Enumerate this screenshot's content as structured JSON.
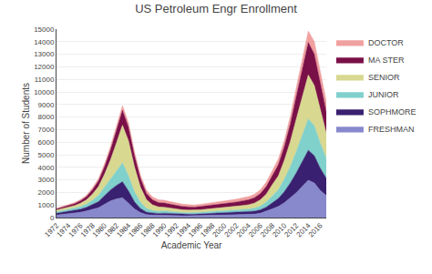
{
  "chart_data": {
    "type": "area",
    "title": "US Petroleum Engr Enrollment",
    "xlabel": "Academic Year",
    "ylabel": "Number of Students",
    "x": [
      1972,
      1973,
      1974,
      1975,
      1976,
      1977,
      1978,
      1979,
      1980,
      1981,
      1982,
      1983,
      1984,
      1985,
      1986,
      1987,
      1988,
      1989,
      1990,
      1991,
      1992,
      1993,
      1994,
      1995,
      1996,
      1997,
      1998,
      1999,
      2000,
      2001,
      2002,
      2003,
      2004,
      2005,
      2006,
      2007,
      2008,
      2009,
      2010,
      2011,
      2012,
      2013,
      2014,
      2015,
      2016,
      2017
    ],
    "series": [
      {
        "name": "FRESHMAN",
        "color": "#8888cc",
        "values": [
          200,
          250,
          300,
          350,
          420,
          520,
          630,
          780,
          1050,
          1320,
          1480,
          1580,
          1150,
          680,
          390,
          240,
          195,
          175,
          195,
          175,
          155,
          145,
          148,
          148,
          158,
          168,
          178,
          198,
          208,
          218,
          228,
          238,
          248,
          275,
          345,
          490,
          690,
          880,
          1180,
          1580,
          1980,
          2480,
          2980,
          2750,
          2150,
          1750
        ]
      },
      {
        "name": "SOPHMORE",
        "color": "#3a2070",
        "values": [
          145,
          175,
          195,
          215,
          245,
          295,
          395,
          490,
          690,
          880,
          1080,
          1280,
          980,
          580,
          340,
          195,
          175,
          155,
          155,
          145,
          135,
          125,
          118,
          118,
          128,
          138,
          148,
          158,
          168,
          178,
          188,
          198,
          208,
          228,
          268,
          345,
          490,
          640,
          880,
          1180,
          1580,
          1980,
          2380,
          2180,
          1780,
          1380
        ]
      },
      {
        "name": "JUNIOR",
        "color": "#80d0cc",
        "values": [
          100,
          118,
          138,
          158,
          198,
          248,
          348,
          495,
          695,
          895,
          1195,
          1495,
          1195,
          795,
          495,
          295,
          198,
          168,
          178,
          158,
          138,
          128,
          118,
          118,
          128,
          138,
          148,
          158,
          168,
          178,
          188,
          198,
          218,
          248,
          298,
          395,
          545,
          695,
          995,
          1295,
          1695,
          2095,
          2495,
          2395,
          1995,
          1595
        ]
      },
      {
        "name": "SENIOR",
        "color": "#d8d890",
        "values": [
          148,
          178,
          198,
          228,
          278,
          348,
          498,
          698,
          998,
          1495,
          2195,
          2995,
          2795,
          1995,
          1195,
          695,
          445,
          345,
          295,
          265,
          238,
          218,
          208,
          198,
          208,
          218,
          228,
          238,
          258,
          278,
          298,
          318,
          348,
          398,
          495,
          645,
          895,
          1095,
          1495,
          1995,
          2595,
          2995,
          3495,
          3195,
          2595,
          1995
        ]
      },
      {
        "name": "MA STER",
        "color": "#7a1048",
        "values": [
          100,
          118,
          138,
          158,
          198,
          248,
          348,
          448,
          598,
          798,
          998,
          1198,
          1098,
          898,
          698,
          498,
          398,
          348,
          328,
          308,
          288,
          268,
          258,
          248,
          258,
          268,
          278,
          288,
          298,
          318,
          338,
          358,
          388,
          428,
          498,
          598,
          748,
          898,
          1098,
          1398,
          1798,
          2198,
          2598,
          2498,
          2098,
          1698
        ]
      },
      {
        "name": "DOCTOR",
        "color": "#f0a0a0",
        "values": [
          50,
          60,
          68,
          78,
          98,
          118,
          148,
          178,
          218,
          268,
          318,
          368,
          338,
          308,
          278,
          258,
          238,
          228,
          218,
          208,
          198,
          188,
          178,
          173,
          178,
          183,
          188,
          198,
          208,
          218,
          228,
          238,
          258,
          278,
          308,
          348,
          398,
          448,
          498,
          598,
          698,
          798,
          898,
          998,
          948,
          848
        ]
      }
    ],
    "stacked": true,
    "xlim": [
      1972,
      2017
    ],
    "xticks": [
      1972,
      1974,
      1976,
      1978,
      1980,
      1982,
      1984,
      1986,
      1988,
      1990,
      1992,
      1994,
      1996,
      1998,
      2000,
      2002,
      2004,
      2006,
      2008,
      2010,
      2012,
      2014,
      2016
    ],
    "ylim": [
      0,
      15000
    ],
    "yticks": [
      0,
      1000,
      2000,
      3000,
      4000,
      5000,
      6000,
      7000,
      8000,
      9000,
      10000,
      11000,
      12000,
      13000,
      14000,
      15000
    ],
    "grid": true,
    "legend": "upper right"
  }
}
